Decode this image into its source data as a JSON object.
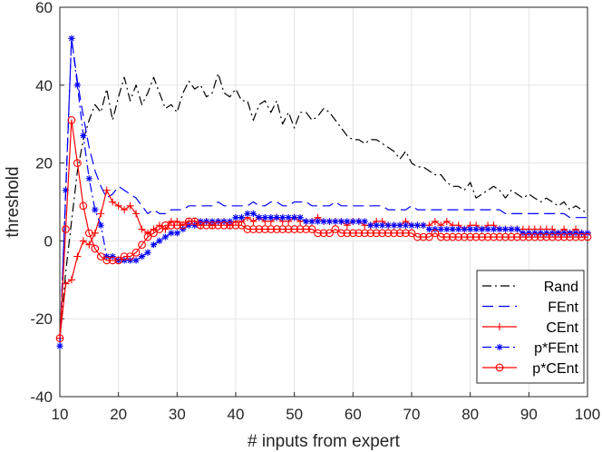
{
  "chart_data": {
    "type": "line",
    "title": "",
    "xlabel": "# inputs from expert",
    "ylabel": "threshold",
    "xlim": [
      10,
      100
    ],
    "ylim": [
      -40,
      60
    ],
    "xticks": [
      10,
      20,
      30,
      40,
      50,
      60,
      70,
      80,
      90,
      100
    ],
    "yticks": [
      -40,
      -20,
      0,
      20,
      40,
      60
    ],
    "grid": true,
    "legend_position": "bottom-right",
    "series": [
      {
        "name": "Rand",
        "color": "#000000",
        "dash": "dashdot",
        "marker": "none",
        "x": [
          10,
          11,
          12,
          13,
          14,
          15,
          16,
          17,
          18,
          19,
          20,
          21,
          22,
          23,
          24,
          25,
          26,
          27,
          28,
          29,
          30,
          31,
          32,
          33,
          34,
          35,
          36,
          37,
          38,
          39,
          40,
          41,
          42,
          43,
          44,
          45,
          46,
          47,
          48,
          49,
          50,
          51,
          52,
          53,
          54,
          55,
          56,
          57,
          58,
          59,
          60,
          61,
          62,
          63,
          64,
          65,
          66,
          67,
          68,
          69,
          70,
          71,
          72,
          73,
          74,
          75,
          76,
          77,
          78,
          79,
          80,
          81,
          82,
          83,
          84,
          85,
          86,
          87,
          88,
          89,
          90,
          91,
          92,
          93,
          94,
          95,
          96,
          97,
          98,
          99,
          100
        ],
        "y": [
          -25,
          -8,
          5,
          18,
          26,
          31,
          35,
          33,
          39,
          31,
          37,
          42,
          36,
          40,
          35,
          38,
          42,
          38,
          34,
          35,
          33,
          38,
          41,
          39,
          40,
          37,
          38,
          43,
          38,
          37,
          39,
          36,
          36,
          31,
          35,
          36,
          33,
          36,
          30,
          33,
          29,
          33,
          33,
          31,
          32,
          34,
          33,
          31,
          29,
          27,
          26,
          26,
          25,
          26,
          26,
          25,
          24,
          23,
          21,
          23,
          20,
          19,
          19,
          18,
          17,
          17,
          15,
          14,
          14,
          13,
          15,
          11,
          12,
          13,
          14,
          13,
          11,
          13,
          12,
          11,
          12,
          11,
          10,
          11,
          10,
          9,
          10,
          8,
          9,
          8,
          7
        ]
      },
      {
        "name": "FEnt",
        "color": "#0000ff",
        "dash": "dashed",
        "marker": "none",
        "x": [
          10,
          11,
          12,
          13,
          14,
          15,
          16,
          17,
          18,
          19,
          20,
          21,
          22,
          23,
          24,
          25,
          26,
          27,
          28,
          29,
          30,
          31,
          32,
          33,
          34,
          35,
          36,
          37,
          38,
          39,
          40,
          41,
          42,
          43,
          44,
          45,
          46,
          47,
          48,
          49,
          50,
          51,
          52,
          53,
          54,
          55,
          56,
          57,
          58,
          59,
          60,
          61,
          62,
          63,
          64,
          65,
          66,
          67,
          68,
          69,
          70,
          71,
          72,
          73,
          74,
          75,
          76,
          77,
          78,
          79,
          80,
          81,
          82,
          83,
          84,
          85,
          86,
          87,
          88,
          89,
          90,
          91,
          92,
          93,
          94,
          95,
          96,
          97,
          98,
          99,
          100
        ],
        "y": [
          -27,
          12,
          52,
          41,
          32,
          24,
          18,
          14,
          11,
          12,
          14,
          13,
          12,
          11,
          9,
          7,
          8,
          7,
          7,
          8,
          8,
          8,
          9,
          9,
          9,
          9,
          9,
          10,
          9,
          9,
          9,
          9,
          9,
          10,
          9,
          9,
          10,
          10,
          9,
          9,
          10,
          10,
          10,
          9,
          9,
          9,
          9,
          10,
          9,
          9,
          9,
          9,
          9,
          9,
          9,
          9,
          8,
          8,
          8,
          8,
          9,
          8,
          8,
          8,
          8,
          8,
          8,
          8,
          8,
          8,
          8,
          8,
          8,
          8,
          8,
          8,
          7,
          7,
          7,
          7,
          7,
          7,
          7,
          7,
          7,
          7,
          7,
          6,
          6,
          6,
          6
        ]
      },
      {
        "name": "CEnt",
        "color": "#ff0000",
        "dash": "solid",
        "marker": "plus",
        "x": [
          10,
          11,
          12,
          13,
          14,
          15,
          16,
          17,
          18,
          19,
          20,
          21,
          22,
          23,
          24,
          25,
          26,
          27,
          28,
          29,
          30,
          31,
          32,
          33,
          34,
          35,
          36,
          37,
          38,
          39,
          40,
          41,
          42,
          43,
          44,
          45,
          46,
          47,
          48,
          49,
          50,
          51,
          52,
          53,
          54,
          55,
          56,
          57,
          58,
          59,
          60,
          61,
          62,
          63,
          64,
          65,
          66,
          67,
          68,
          69,
          70,
          71,
          72,
          73,
          74,
          75,
          76,
          77,
          78,
          79,
          80,
          81,
          82,
          83,
          84,
          85,
          86,
          87,
          88,
          89,
          90,
          91,
          92,
          93,
          94,
          95,
          96,
          97,
          98,
          99,
          100
        ],
        "y": [
          -25,
          -11,
          -10,
          -4,
          0,
          -1,
          2,
          7,
          13,
          10,
          9,
          8,
          9,
          7,
          3,
          2,
          3,
          4,
          3,
          5,
          5,
          4,
          5,
          5,
          4,
          5,
          4,
          5,
          5,
          4,
          5,
          5,
          6,
          5,
          6,
          5,
          5,
          6,
          5,
          5,
          6,
          5,
          5,
          5,
          6,
          5,
          5,
          5,
          5,
          4,
          5,
          5,
          4,
          4,
          5,
          5,
          4,
          4,
          4,
          5,
          4,
          4,
          4,
          4,
          5,
          4,
          5,
          4,
          4,
          3,
          4,
          4,
          3,
          4,
          4,
          3,
          3,
          3,
          3,
          3,
          3,
          3,
          3,
          3,
          3,
          2,
          3,
          2,
          3,
          2,
          2
        ]
      },
      {
        "name": "p*FEnt",
        "color": "#0000ff",
        "dash": "dashdot",
        "marker": "asterisk",
        "x": [
          10,
          11,
          12,
          13,
          14,
          15,
          16,
          17,
          18,
          19,
          20,
          21,
          22,
          23,
          24,
          25,
          26,
          27,
          28,
          29,
          30,
          31,
          32,
          33,
          34,
          35,
          36,
          37,
          38,
          39,
          40,
          41,
          42,
          43,
          44,
          45,
          46,
          47,
          48,
          49,
          50,
          51,
          52,
          53,
          54,
          55,
          56,
          57,
          58,
          59,
          60,
          61,
          62,
          63,
          64,
          65,
          66,
          67,
          68,
          69,
          70,
          71,
          72,
          73,
          74,
          75,
          76,
          77,
          78,
          79,
          80,
          81,
          82,
          83,
          84,
          85,
          86,
          87,
          88,
          89,
          90,
          91,
          92,
          93,
          94,
          95,
          96,
          97,
          98,
          99,
          100
        ],
        "y": [
          -27,
          13,
          52,
          40,
          27,
          16,
          8,
          4,
          -4,
          -4,
          -5,
          -5,
          -5,
          -5,
          -4,
          -3,
          -1,
          0,
          1,
          2,
          2,
          3,
          4,
          4,
          5,
          5,
          5,
          5,
          5,
          5,
          6,
          6,
          7,
          7,
          6,
          6,
          6,
          6,
          6,
          6,
          6,
          6,
          5,
          5,
          5,
          5,
          5,
          5,
          5,
          5,
          5,
          5,
          5,
          4,
          4,
          4,
          4,
          4,
          4,
          4,
          4,
          4,
          4,
          3,
          3,
          3,
          3,
          3,
          3,
          3,
          3,
          3,
          3,
          3,
          3,
          3,
          3,
          3,
          3,
          2,
          2,
          2,
          2,
          2,
          2,
          2,
          2,
          2,
          2,
          2,
          2
        ]
      },
      {
        "name": "p*CEnt",
        "color": "#ff0000",
        "dash": "solid",
        "marker": "circle",
        "x": [
          10,
          11,
          12,
          13,
          14,
          15,
          16,
          17,
          18,
          19,
          20,
          21,
          22,
          23,
          24,
          25,
          26,
          27,
          28,
          29,
          30,
          31,
          32,
          33,
          34,
          35,
          36,
          37,
          38,
          39,
          40,
          41,
          42,
          43,
          44,
          45,
          46,
          47,
          48,
          49,
          50,
          51,
          52,
          53,
          54,
          55,
          56,
          57,
          58,
          59,
          60,
          61,
          62,
          63,
          64,
          65,
          66,
          67,
          68,
          69,
          70,
          71,
          72,
          73,
          74,
          75,
          76,
          77,
          78,
          79,
          80,
          81,
          82,
          83,
          84,
          85,
          86,
          87,
          88,
          89,
          90,
          91,
          92,
          93,
          94,
          95,
          96,
          97,
          98,
          99,
          100
        ],
        "y": [
          -25,
          3,
          31,
          20,
          9,
          2,
          -2,
          -4,
          -5,
          -5,
          -5,
          -4,
          -4,
          -3,
          -1,
          1,
          2,
          3,
          4,
          4,
          4,
          4,
          5,
          5,
          4,
          4,
          4,
          4,
          4,
          4,
          4,
          4,
          3,
          3,
          3,
          3,
          3,
          3,
          3,
          3,
          3,
          3,
          3,
          3,
          2,
          2,
          2,
          3,
          2,
          2,
          2,
          2,
          2,
          2,
          2,
          2,
          2,
          2,
          2,
          2,
          2,
          1,
          1,
          1,
          2,
          1,
          1,
          1,
          1,
          1,
          1,
          1,
          1,
          1,
          1,
          1,
          1,
          1,
          1,
          1,
          1,
          1,
          1,
          1,
          1,
          1,
          1,
          1,
          1,
          1,
          1
        ]
      }
    ]
  }
}
